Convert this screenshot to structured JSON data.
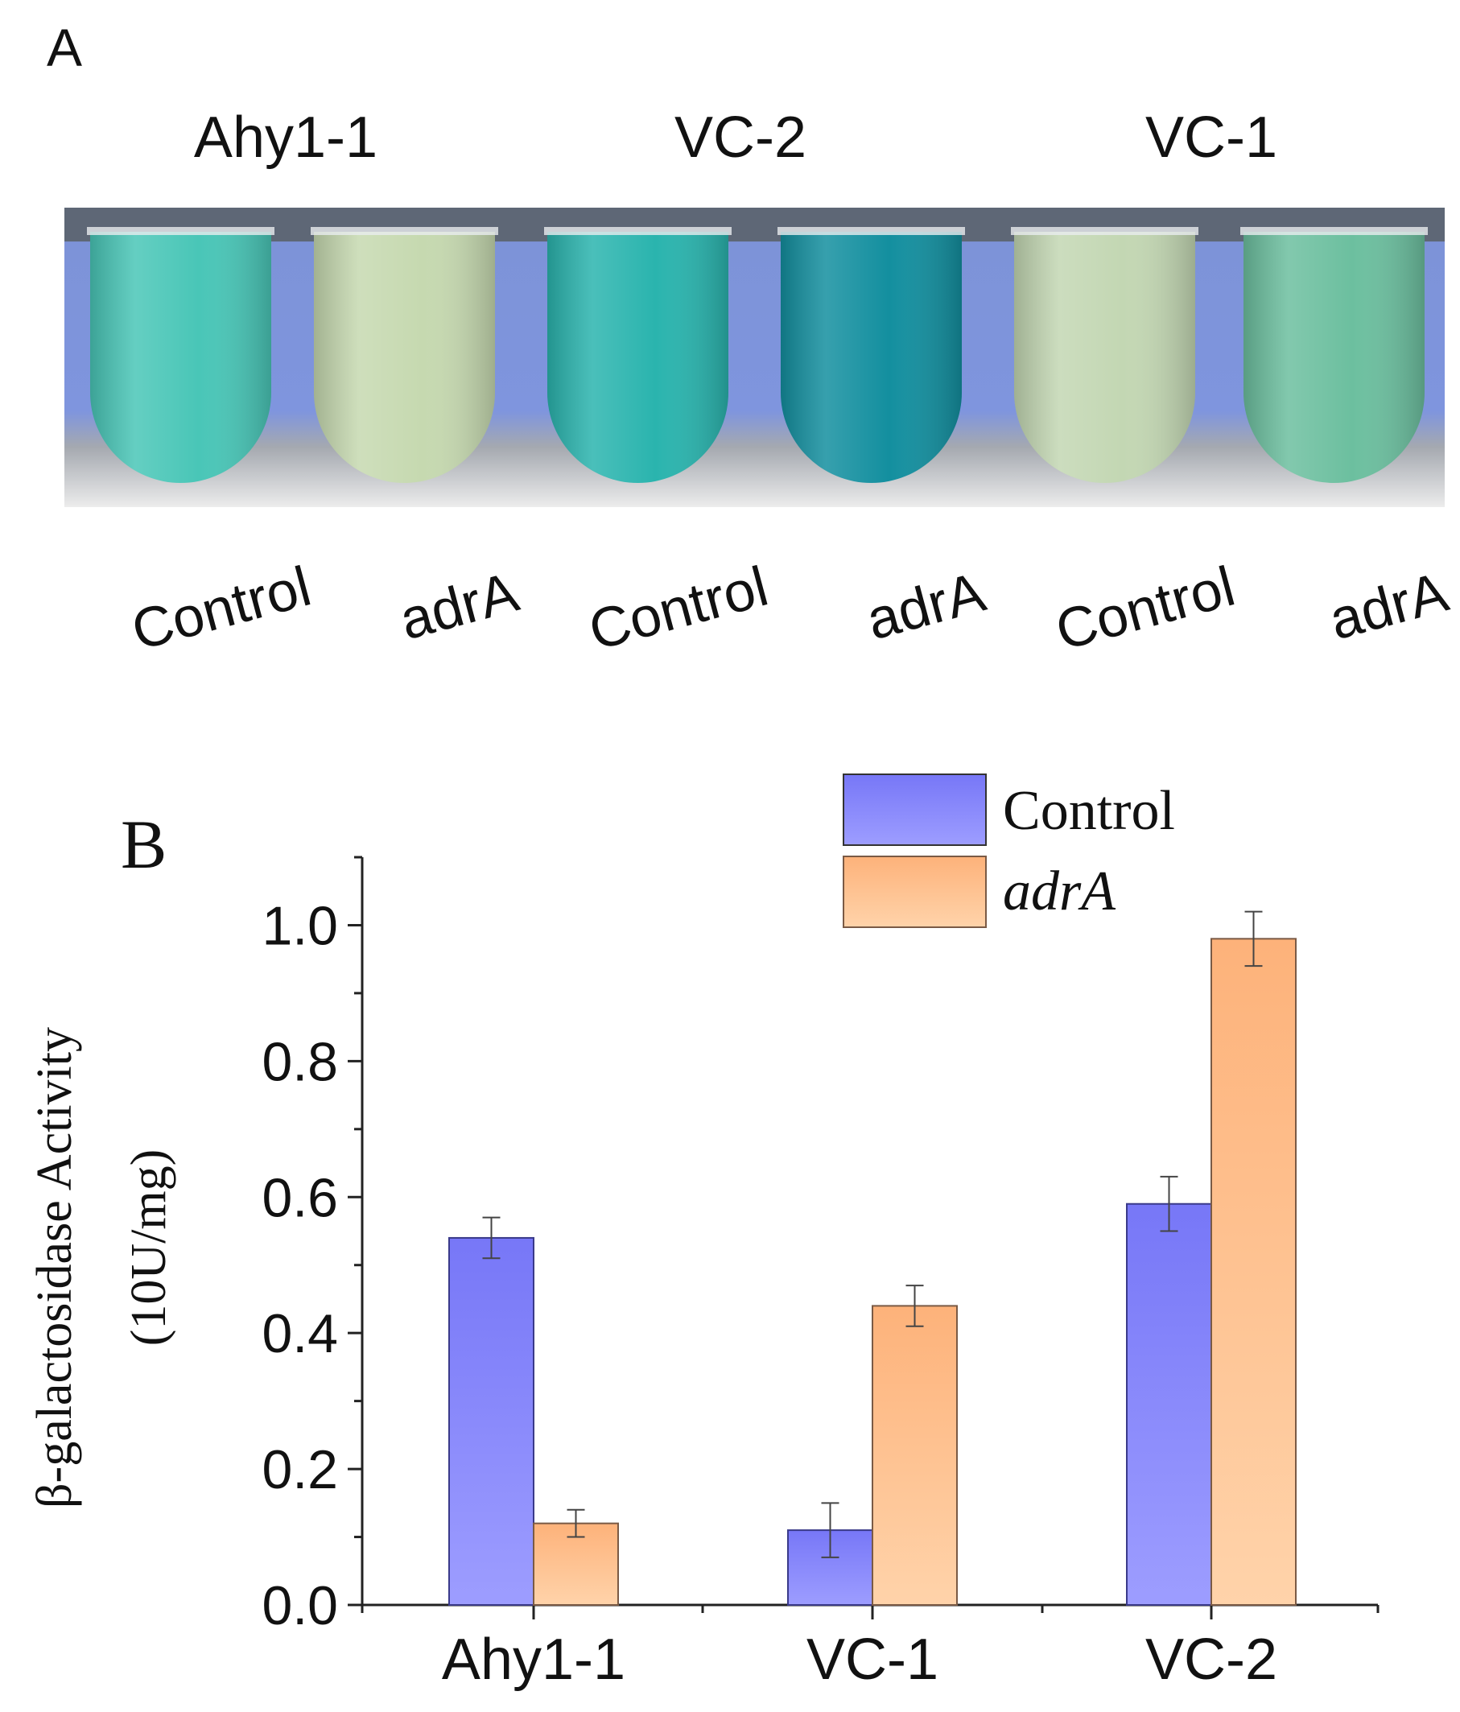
{
  "panel_a": {
    "label": "A",
    "groups": [
      {
        "name": "Ahy1-1",
        "tubes": [
          {
            "label": "Control",
            "color": "#49c6b7"
          },
          {
            "label": "adrA",
            "color": "#c6d9b0"
          }
        ]
      },
      {
        "name": "VC-2",
        "tubes": [
          {
            "label": "Control",
            "color": "#2ab4ae"
          },
          {
            "label": "adrA",
            "color": "#138f9f"
          }
        ]
      },
      {
        "name": "VC-1",
        "tubes": [
          {
            "label": "Control",
            "color": "#c3d7b3"
          },
          {
            "label": "adrA",
            "color": "#6cbf9f"
          }
        ]
      }
    ]
  },
  "panel_b": {
    "label": "B"
  },
  "chart_data": {
    "type": "bar",
    "categories": [
      "Ahy1-1",
      "VC-1",
      "VC-2"
    ],
    "series": [
      {
        "name": "Control",
        "italic": false,
        "color": "#8a8aff",
        "values": [
          0.54,
          0.11,
          0.59
        ],
        "errors": [
          0.03,
          0.04,
          0.04
        ]
      },
      {
        "name": "adrA",
        "italic": true,
        "color": "#ffc18a",
        "values": [
          0.12,
          0.44,
          0.98
        ],
        "errors": [
          0.02,
          0.03,
          0.04
        ]
      }
    ],
    "ylabel_line1": "β-galactosidase Activity",
    "ylabel_line2": "(10U/mg)",
    "xlabel": "",
    "ylim": [
      0,
      1.1
    ],
    "yticks": [
      "0.0",
      "0.2",
      "0.4",
      "0.6",
      "0.8",
      "1.0"
    ],
    "legend_position": "top-right"
  }
}
